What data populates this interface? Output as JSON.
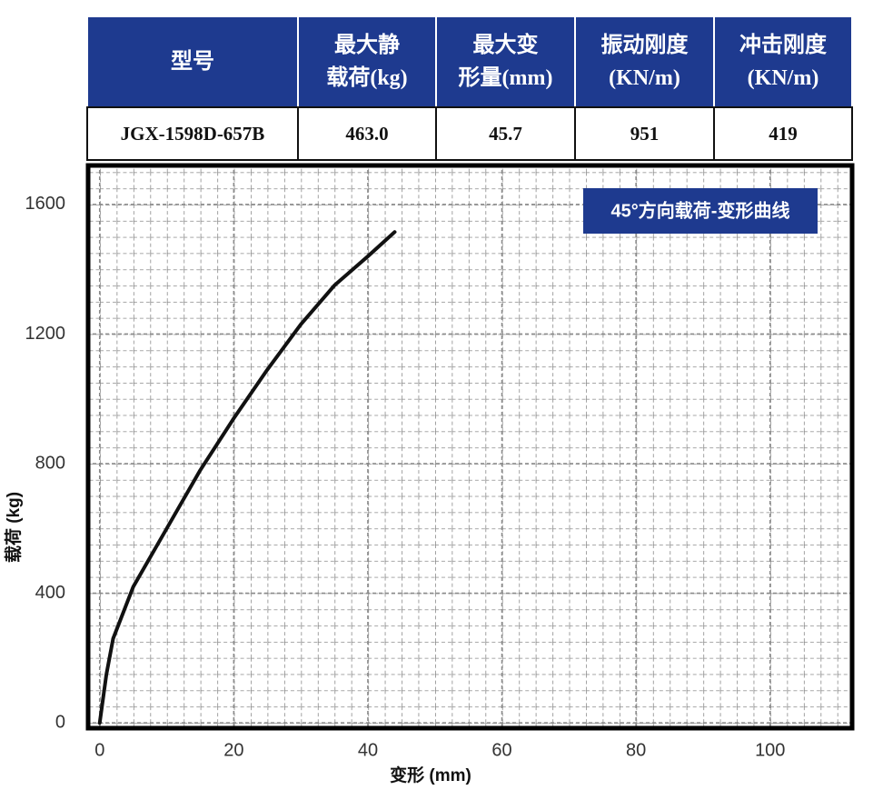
{
  "table": {
    "header": [
      [
        "型号"
      ],
      [
        "最大静",
        "载荷(kg)"
      ],
      [
        "最大变",
        "形量(mm)"
      ],
      [
        "振动刚度",
        "(KN/m)"
      ],
      [
        "冲击刚度",
        "(KN/m)"
      ]
    ],
    "rows": [
      [
        "JGX-1598D-657B",
        "463.0",
        "45.7",
        "951",
        "419"
      ]
    ]
  },
  "chart_data": {
    "type": "line",
    "title": "45°方向载荷-变形曲线",
    "x_label": "变形 (mm)",
    "y_label": "载荷 (kg)",
    "x": [
      0,
      1,
      2,
      5,
      10,
      15,
      20,
      25,
      30,
      35,
      40,
      44
    ],
    "values": [
      0,
      150,
      260,
      420,
      600,
      780,
      940,
      1090,
      1230,
      1350,
      1440,
      1515
    ],
    "color": "#111111",
    "xlim": [
      -2,
      112.5
    ],
    "ylim": [
      -22,
      1726
    ],
    "xticks": [
      0,
      20,
      40,
      60,
      80,
      100
    ],
    "yticks": [
      0,
      400,
      800,
      1200,
      1600
    ],
    "grid": true
  }
}
